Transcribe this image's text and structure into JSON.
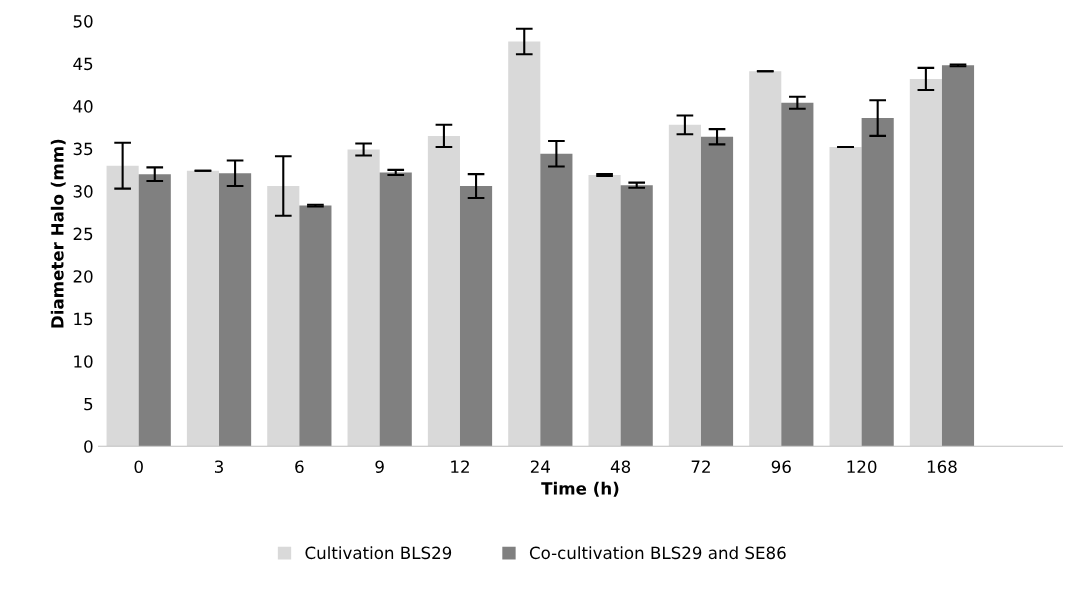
{
  "chart_data": {
    "type": "bar",
    "xlabel": "Time (h)",
    "ylabel": "Diameter Halo (mm)",
    "categories": [
      "0",
      "3",
      "6",
      "9",
      "12",
      "24",
      "48",
      "72",
      "96",
      "120",
      "168",
      null
    ],
    "series": [
      {
        "name": "Cultivation BLS29",
        "color": "#d9d9d9",
        "values": [
          33.0,
          32.4,
          30.6,
          34.9,
          36.5,
          47.6,
          31.9,
          37.8,
          44.1,
          35.2,
          43.2,
          null
        ],
        "errors": [
          2.7,
          0,
          3.5,
          0.7,
          1.3,
          1.5,
          0.1,
          1.1,
          0,
          0,
          1.3,
          null
        ]
      },
      {
        "name": "Co-cultivation BLS29 and SE86",
        "color": "#808080",
        "values": [
          32.0,
          32.1,
          28.3,
          32.2,
          30.6,
          34.4,
          30.7,
          36.4,
          40.4,
          38.6,
          44.8,
          null
        ],
        "errors": [
          0.8,
          1.5,
          0.1,
          0.3,
          1.4,
          1.5,
          0.3,
          0.9,
          0.7,
          2.1,
          0.1,
          null
        ]
      }
    ],
    "ylim": [
      0,
      50
    ],
    "yticks": [
      0,
      5,
      10,
      15,
      20,
      25,
      30,
      35,
      40,
      45,
      50
    ],
    "grid": false,
    "legend": "bottom"
  }
}
